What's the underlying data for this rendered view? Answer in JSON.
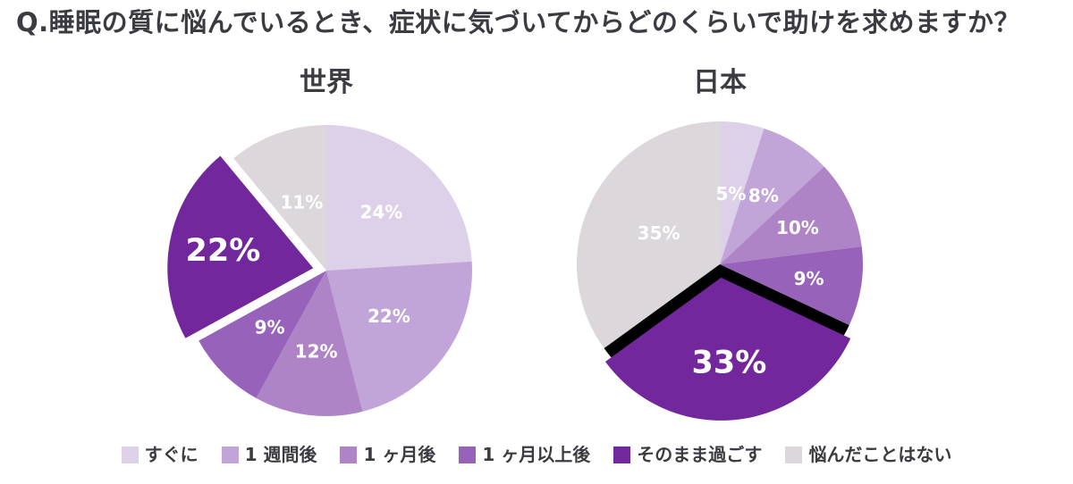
{
  "page_title": "Q.睡眠の質に悩んでいるとき、症状に気づいてからどのくらいで助けを求めますか？",
  "colors": {
    "title_text": "#3b3b42",
    "pie_label_text": "#ffffff",
    "page_bg": "#ffffff",
    "card_bg": "#ffffff",
    "world_explode_gap": "#ffffff",
    "japan_explode_gap": "#000000"
  },
  "legend": {
    "items": [
      {
        "label": "すぐに",
        "color": "#ddd1e9"
      },
      {
        "label": "1 週間後",
        "color": "#c2a5d8"
      },
      {
        "label": "1 ヶ月後",
        "color": "#ae84c7"
      },
      {
        "label": "1 ヶ月以上後",
        "color": "#9763ba"
      },
      {
        "label": "そのまま過ごす",
        "color": "#72289c"
      },
      {
        "label": "悩んだことはない",
        "color": "#dbd7da"
      }
    ]
  },
  "chart_data": [
    {
      "type": "pie",
      "id": "world",
      "title": "世界",
      "unit": "%",
      "direction": "clockwise",
      "start_angle_deg": 0,
      "categories": [
        "すぐに",
        "1 週間後",
        "1 ヶ月後",
        "1 ヶ月以上後",
        "そのまま過ごす",
        "悩んだことはない"
      ],
      "values": [
        24,
        22,
        12,
        9,
        22,
        11
      ],
      "labels": [
        "24%",
        "22%",
        "12%",
        "9%",
        "22%",
        "11%"
      ],
      "exploded_index": 4
    },
    {
      "type": "pie",
      "id": "japan",
      "title": "日本",
      "unit": "%",
      "direction": "clockwise",
      "start_angle_deg": 0,
      "categories": [
        "すぐに",
        "1 週間後",
        "1 ヶ月後",
        "1 ヶ月以上後",
        "そのまま過ごす",
        "悩んだことはない"
      ],
      "values": [
        5,
        8,
        10,
        9,
        33,
        35
      ],
      "labels": [
        "5%",
        "8%",
        "10%",
        "9%",
        "33%",
        "35%"
      ],
      "exploded_index": 4
    }
  ]
}
